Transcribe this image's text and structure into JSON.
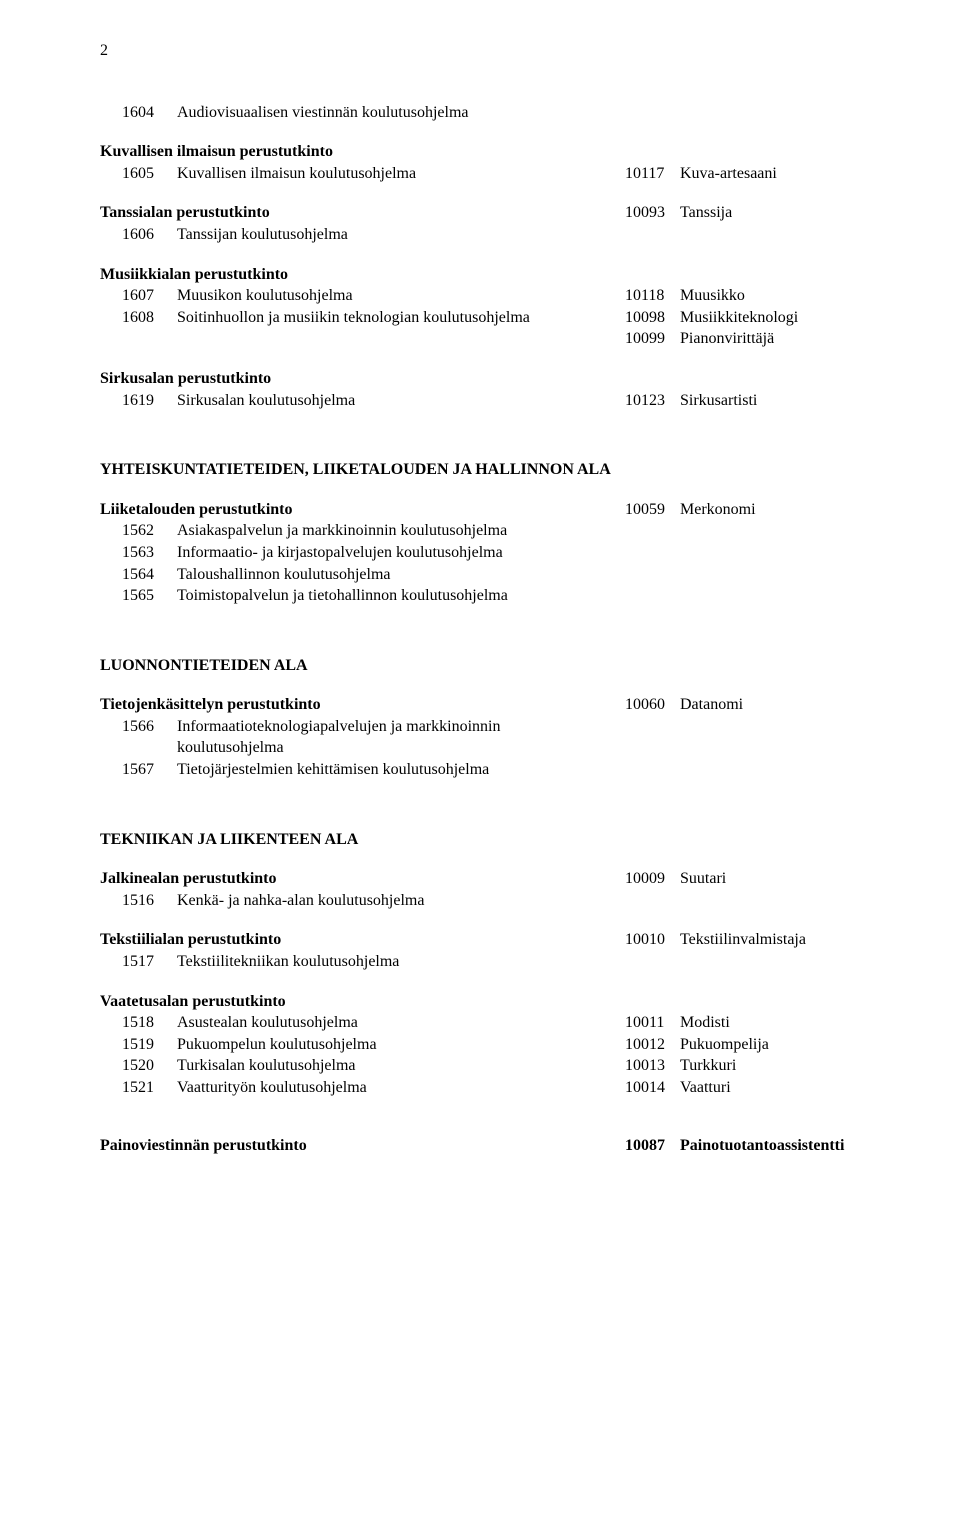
{
  "page_number": "2",
  "blocks": [
    {
      "lines": [
        {
          "code": "1604",
          "label": "Audiovisuaalisen viestinnän koulutusohjelma"
        }
      ]
    },
    {
      "heading": "Kuvallisen ilmaisun perustutkinto",
      "lines": [
        {
          "code": "1605",
          "label": "Kuvallisen ilmaisun koulutusohjelma",
          "rcode": "10117",
          "rlabel": "Kuva-artesaani"
        }
      ]
    },
    {
      "heading": "Tanssialan perustutkinto",
      "heading_rcode": "10093",
      "heading_rlabel": "Tanssija",
      "lines": [
        {
          "code": "1606",
          "label": "Tanssijan koulutusohjelma"
        }
      ]
    },
    {
      "heading": "Musiikkialan perustutkinto",
      "lines": [
        {
          "code": "1607",
          "label": "Muusikon koulutusohjelma",
          "rcode": "10118",
          "rlabel": "Muusikko"
        },
        {
          "code": "1608",
          "label": "Soitinhuollon ja musiikin teknologian koulutusohjelma",
          "rcode": "10098",
          "rlabel": "Musiikkiteknologi"
        },
        {
          "code": "",
          "label": "",
          "rcode": "10099",
          "rlabel": "Pianonvirittäjä"
        }
      ]
    },
    {
      "heading": "Sirkusalan perustutkinto",
      "lines": [
        {
          "code": "1619",
          "label": "Sirkusalan koulutusohjelma",
          "rcode": "10123",
          "rlabel": "Sirkusartisti"
        }
      ]
    }
  ],
  "section2_title": "YHTEISKUNTATIETEIDEN, LIIKETALOUDEN JA HALLINNON ALA",
  "block2": {
    "heading": "Liiketalouden perustutkinto",
    "heading_rcode": "10059",
    "heading_rlabel": "Merkonomi",
    "lines": [
      {
        "code": "1562",
        "label": "Asiakaspalvelun ja markkinoinnin koulutusohjelma"
      },
      {
        "code": "1563",
        "label": "Informaatio- ja kirjastopalvelujen koulutusohjelma"
      },
      {
        "code": "1564",
        "label": "Taloushallinnon koulutusohjelma"
      },
      {
        "code": "1565",
        "label": "Toimistopalvelun ja tietohallinnon koulutusohjelma"
      }
    ]
  },
  "section3_title": "LUONNONTIETEIDEN ALA",
  "block3": {
    "heading": "Tietojenkäsittelyn perustutkinto",
    "heading_rcode": "10060",
    "heading_rlabel": "Datanomi",
    "lines": [
      {
        "code": "1566",
        "label": "Informaatioteknologiapalvelujen ja markkinoinnin koulutusohjelma"
      },
      {
        "code": "1567",
        "label": "Tietojärjestelmien kehittämisen koulutusohjelma"
      }
    ]
  },
  "section4_title": "TEKNIIKAN JA LIIKENTEEN ALA",
  "blocks4": [
    {
      "heading": "Jalkinealan perustutkinto",
      "heading_rcode": "10009",
      "heading_rlabel": "Suutari",
      "lines": [
        {
          "code": "1516",
          "label": "Kenkä- ja nahka-alan koulutusohjelma"
        }
      ]
    },
    {
      "heading": "Tekstiilialan perustutkinto",
      "heading_rcode": "10010",
      "heading_rlabel": "Tekstiilinvalmistaja",
      "lines": [
        {
          "code": "1517",
          "label": "Tekstiilitekniikan koulutusohjelma"
        }
      ]
    },
    {
      "heading": "Vaatetusalan perustutkinto",
      "lines": [
        {
          "code": "1518",
          "label": "Asustealan koulutusohjelma",
          "rcode": "10011",
          "rlabel": "Modisti"
        },
        {
          "code": "1519",
          "label": "Pukuompelun koulutusohjelma",
          "rcode": "10012",
          "rlabel": "Pukuompelija"
        },
        {
          "code": "1520",
          "label": "Turkisalan koulutusohjelma",
          "rcode": "10013",
          "rlabel": "Turkkuri"
        },
        {
          "code": "1521",
          "label": "Vaatturityön koulutusohjelma",
          "rcode": "10014",
          "rlabel": "Vaatturi"
        }
      ]
    }
  ],
  "footer": {
    "heading": "Painoviestinnän perustutkinto",
    "rcode": "10087",
    "rlabel": "Painotuotantoassistentti"
  }
}
